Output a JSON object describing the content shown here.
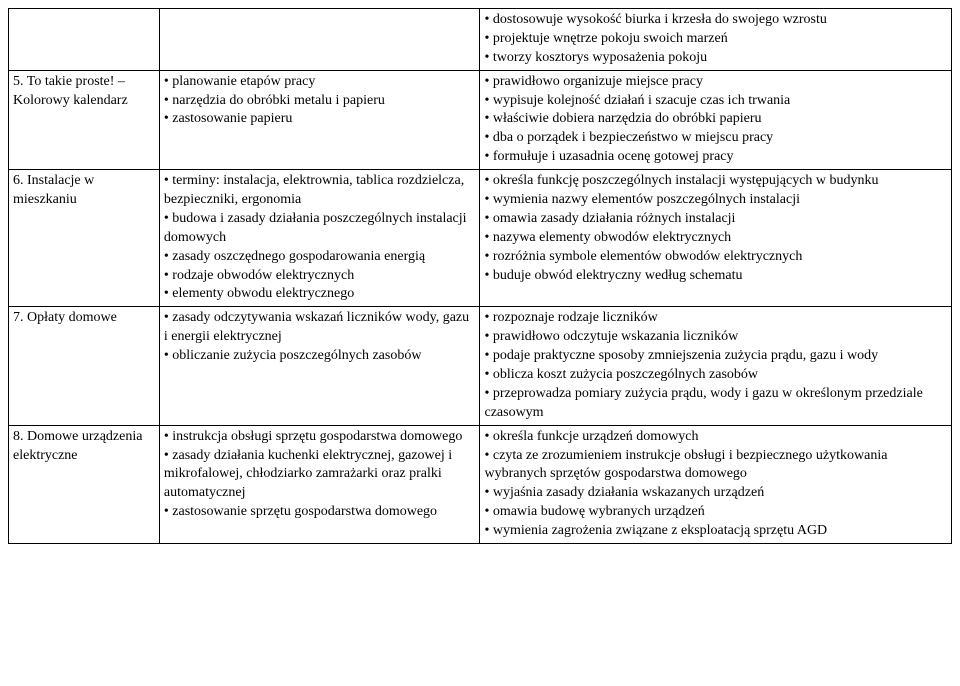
{
  "rows": [
    {
      "name": "row-header-top",
      "col1": "",
      "col2": "",
      "col3": "• dostosowuje wysokość biurka i krzesła do swojego wzrostu\n• projektuje wnętrze pokoju swoich marzeń\n• tworzy kosztorys wyposażenia pokoju"
    },
    {
      "name": "row-5",
      "col1": "5. To takie proste! – Kolorowy kalendarz",
      "col2": "• planowanie etapów pracy\n• narzędzia do obróbki metalu i papieru\n• zastosowanie papieru",
      "col3": "• prawidłowo organizuje miejsce pracy\n• wypisuje kolejność działań i szacuje czas ich trwania\n• właściwie dobiera narzędzia do obróbki papieru\n• dba o porządek i bezpieczeństwo w miejscu pracy\n• formułuje i uzasadnia ocenę gotowej pracy"
    },
    {
      "name": "row-6",
      "col1": "6. Instalacje w mieszkaniu",
      "col2": "• terminy: instalacja, elektrownia, tablica rozdzielcza, bezpieczniki, ergonomia\n• budowa i zasady działania poszczególnych instalacji domowych\n• zasady oszczędnego gospodarowania energią\n• rodzaje obwodów elektrycznych\n• elementy obwodu elektrycznego",
      "col3": "• określa funkcję poszczególnych instalacji występujących w budynku\n• wymienia nazwy elementów poszczególnych instalacji\n• omawia zasady działania różnych instalacji\n• nazywa elementy obwodów elektrycznych\n• rozróżnia symbole elementów obwodów elektrycznych\n• buduje obwód elektryczny według schematu"
    },
    {
      "name": "row-7",
      "col1": "7. Opłaty domowe",
      "col2": "• zasady odczytywania wskazań liczników wody, gazu i energii elektrycznej\n• obliczanie zużycia poszczególnych zasobów",
      "col3": "• rozpoznaje rodzaje liczników\n• prawidłowo odczytuje wskazania liczników\n• podaje praktyczne sposoby zmniejszenia zużycia prądu, gazu i wody\n• oblicza koszt zużycia poszczególnych zasobów\n• przeprowadza pomiary zużycia prądu, wody i gazu w określonym przedziale czasowym"
    },
    {
      "name": "row-8",
      "col1": "8. Domowe urządzenia elektryczne",
      "col2": "• instrukcja obsługi sprzętu gospodarstwa domowego\n• zasady działania kuchenki elektrycznej, gazowej i mikrofalowej, chłodziarko zamrażarki oraz pralki automatycznej\n• zastosowanie sprzętu gospodarstwa domowego",
      "col3": "• określa funkcje urządzeń domowych\n• czyta ze zrozumieniem instrukcje obsługi i bezpiecznego użytkowania wybranych sprzętów gospodarstwa domowego\n• wyjaśnia zasady działania wskazanych urządzeń\n• omawia budowę wybranych urządzeń\n• wymienia zagrożenia związane z eksploatacją sprzętu AGD"
    }
  ]
}
